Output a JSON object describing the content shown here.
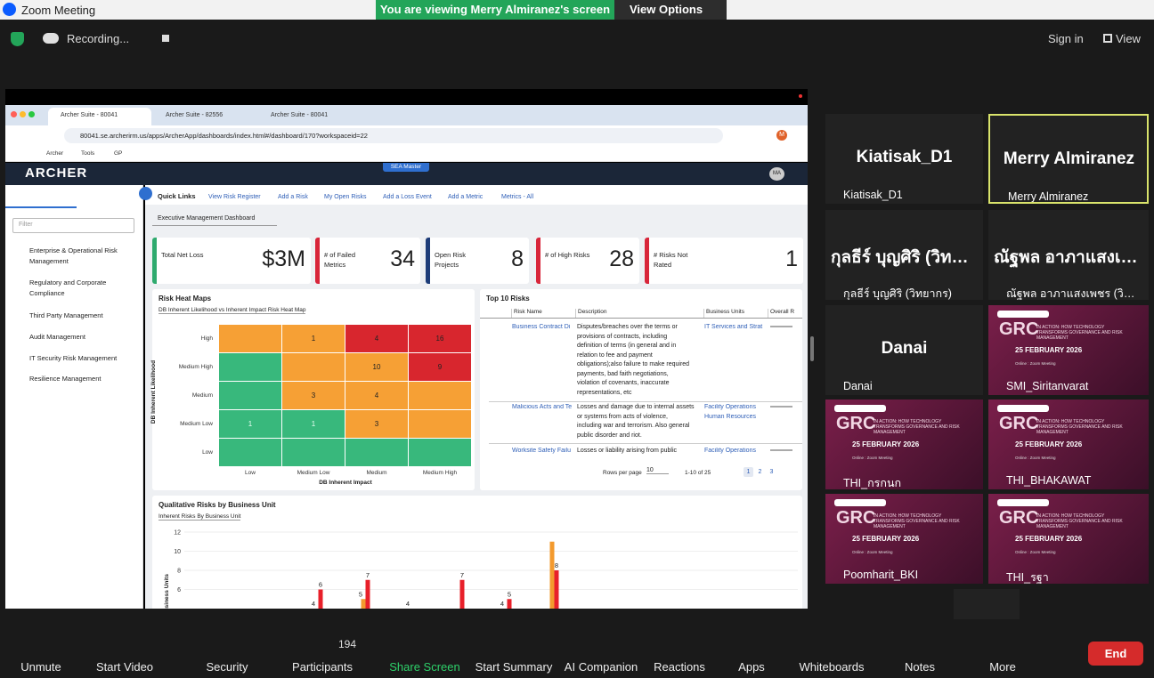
{
  "zoom": {
    "app_title": "Zoom Meeting",
    "banner": "You are viewing Merry Almiranez's screen",
    "view_options": "View Options",
    "recording": "Recording...",
    "sign_in": "Sign in",
    "view": "View"
  },
  "browser": {
    "tabs": [
      "Archer Suite - 80041",
      "Archer Suite - 82556",
      "Archer Suite - 80041"
    ],
    "url": "80041.se.archerirm.us/apps/ArcherApp/dashboards/index.html#/dashboard/170?workspaceid=22",
    "bookmarks": [
      "Archer",
      "Tools",
      "GP"
    ],
    "profile": "M"
  },
  "archer": {
    "logo": "ARCHER",
    "env": "SEA Master",
    "user": "MA",
    "quick_links_title": "Quick Links",
    "quick_links": [
      "View Risk Register",
      "Add a Risk",
      "My Open Risks",
      "Add a Loss Event",
      "Add a Metric",
      "Metrics - All"
    ],
    "filter_placeholder": "Filter",
    "nav": [
      "Enterprise & Operational Risk Management",
      "Regulatory and Corporate Compliance",
      "Third Party Management",
      "Audit Management",
      "IT Security Risk Management",
      "Resilience Management"
    ],
    "dashboard": "Executive Management Dashboard",
    "kpis": [
      {
        "label": "Total Net Loss",
        "value": "$3M",
        "color": "#2eaa6e"
      },
      {
        "label": "# of Failed Metrics",
        "value": 34,
        "color": "#d8263a"
      },
      {
        "label": "Open Risk Projects",
        "value": 8,
        "color": "#1d3c78"
      },
      {
        "label": "# of High Risks",
        "value": 28,
        "color": "#d8263a"
      },
      {
        "label": "# Risks Not Rated",
        "value": 1,
        "color": "#d8263a"
      }
    ],
    "heat_map": {
      "title": "Risk Heat Maps",
      "selector": "DB Inherent Likelihood vs Inherent Impact Risk Heat Map",
      "y_title": "DB Inherent Likelihood",
      "x_title": "DB Inherent Impact",
      "rows": [
        "High",
        "Medium High",
        "Medium",
        "Medium Low",
        "Low"
      ],
      "columns": [
        "Low",
        "Medium Low",
        "Medium",
        "Medium High"
      ],
      "cells": [
        [
          {
            "color": "#f6a035"
          },
          {
            "color": "#f6a035",
            "value": 1
          },
          {
            "color": "#d8262e",
            "value": 4
          },
          {
            "color": "#d8262e",
            "value": 16
          }
        ],
        [
          {
            "color": "#38b87c"
          },
          {
            "color": "#f6a035"
          },
          {
            "color": "#f6a035",
            "value": 10
          },
          {
            "color": "#d8262e",
            "value": 9
          }
        ],
        [
          {
            "color": "#38b87c"
          },
          {
            "color": "#f6a035",
            "value": 3
          },
          {
            "color": "#f6a035",
            "value": 4
          },
          {
            "color": "#f6a035"
          }
        ],
        [
          {
            "color": "#38b87c",
            "value": 1
          },
          {
            "color": "#38b87c",
            "value": 1
          },
          {
            "color": "#f6a035",
            "value": 3
          },
          {
            "color": "#f6a035"
          }
        ],
        [
          {
            "color": "#38b87c"
          },
          {
            "color": "#38b87c"
          },
          {
            "color": "#38b87c"
          },
          {
            "color": "#38b87c"
          }
        ]
      ]
    },
    "top_risks": {
      "title": "Top 10 Risks",
      "columns": [
        "Risk Name",
        "Description",
        "Business Units",
        "Overall R"
      ],
      "rows": [
        {
          "name": "Business Contract Di",
          "description": [
            "Disputes/breaches over the terms or",
            "provisions of contracts, including",
            "definition of terms (in general and in",
            "relation to fee and payment",
            "obligations);also failure to make required",
            "payments, bad faith negotiations,",
            "violation of covenants, inaccurate",
            "representations, etc"
          ],
          "units": [
            "IT Services and Strat"
          ]
        },
        {
          "name": "Malicious Acts and Te",
          "description": [
            "Losses and damage due to internal assets",
            "or systems from acts of violence,",
            "including war and terrorism. Also general",
            "public disorder and riot."
          ],
          "units": [
            "Facility Operations",
            "Human Resources"
          ]
        },
        {
          "name": "Worksite Safety Failu",
          "description": [
            "Losses or liability arising from public"
          ],
          "units": [
            "Facility Operations"
          ]
        }
      ],
      "rows_per_page_label": "Rows per page",
      "rows_per_page": 10,
      "range": "1-10 of 25",
      "pages": [
        1,
        2,
        3
      ]
    },
    "qualitative": {
      "title": "Qualitative Risks by Business Unit",
      "selector": "Inherent Risks By Business Unit",
      "y_title": "Business Units",
      "ylim": [
        0,
        12
      ],
      "yticks": [
        6,
        8,
        10,
        12
      ],
      "series": [
        {
          "color": "#f39a2e",
          "values": [
            4,
            5,
            4,
            null,
            4,
            11
          ],
          "value_labels": [
            "4",
            "5",
            "4",
            null,
            "4",
            null
          ]
        },
        {
          "color": "#e8202a",
          "values": [
            6,
            7,
            null,
            7,
            5,
            8
          ],
          "value_labels": [
            "6",
            "7",
            null,
            "7",
            "5",
            "8"
          ]
        }
      ]
    }
  },
  "poster": {
    "logo": "GRC",
    "tagline": "IN ACTION: HOW TECHNOLOGY TRANSFORMS GOVERNANCE AND RISK MANAGEMENT",
    "date": "25 FEBRUARY 2026",
    "venue": "Online : Zoom Meeting"
  },
  "participants": [
    {
      "name": "Kiatisak_D1"
    },
    {
      "name": "Merry Almiranez",
      "active": true
    },
    {
      "name": "กุลธีร์ บุญศิริ (วิทยากร)"
    },
    {
      "name": "ณัฐพล อาภาแสงเพชร (วิทยากร)"
    },
    {
      "name": "Danai"
    },
    {
      "name": "SMI_Siritanvarat",
      "poster": true
    },
    {
      "name": "THI_กรกนก",
      "poster": true
    },
    {
      "name": "THI_BHAKAWAT",
      "poster": true
    },
    {
      "name": "Poomharit_BKI",
      "poster": true
    },
    {
      "name": "THI_รฐา",
      "poster": true
    }
  ],
  "toolbar": {
    "items": [
      "Unmute",
      "Start Video",
      "Security",
      "Participants",
      "Share Screen",
      "Start Summary",
      "AI Companion",
      "Reactions",
      "Apps",
      "Whiteboards",
      "Notes",
      "More"
    ],
    "participant_count": 194,
    "end": "End"
  }
}
